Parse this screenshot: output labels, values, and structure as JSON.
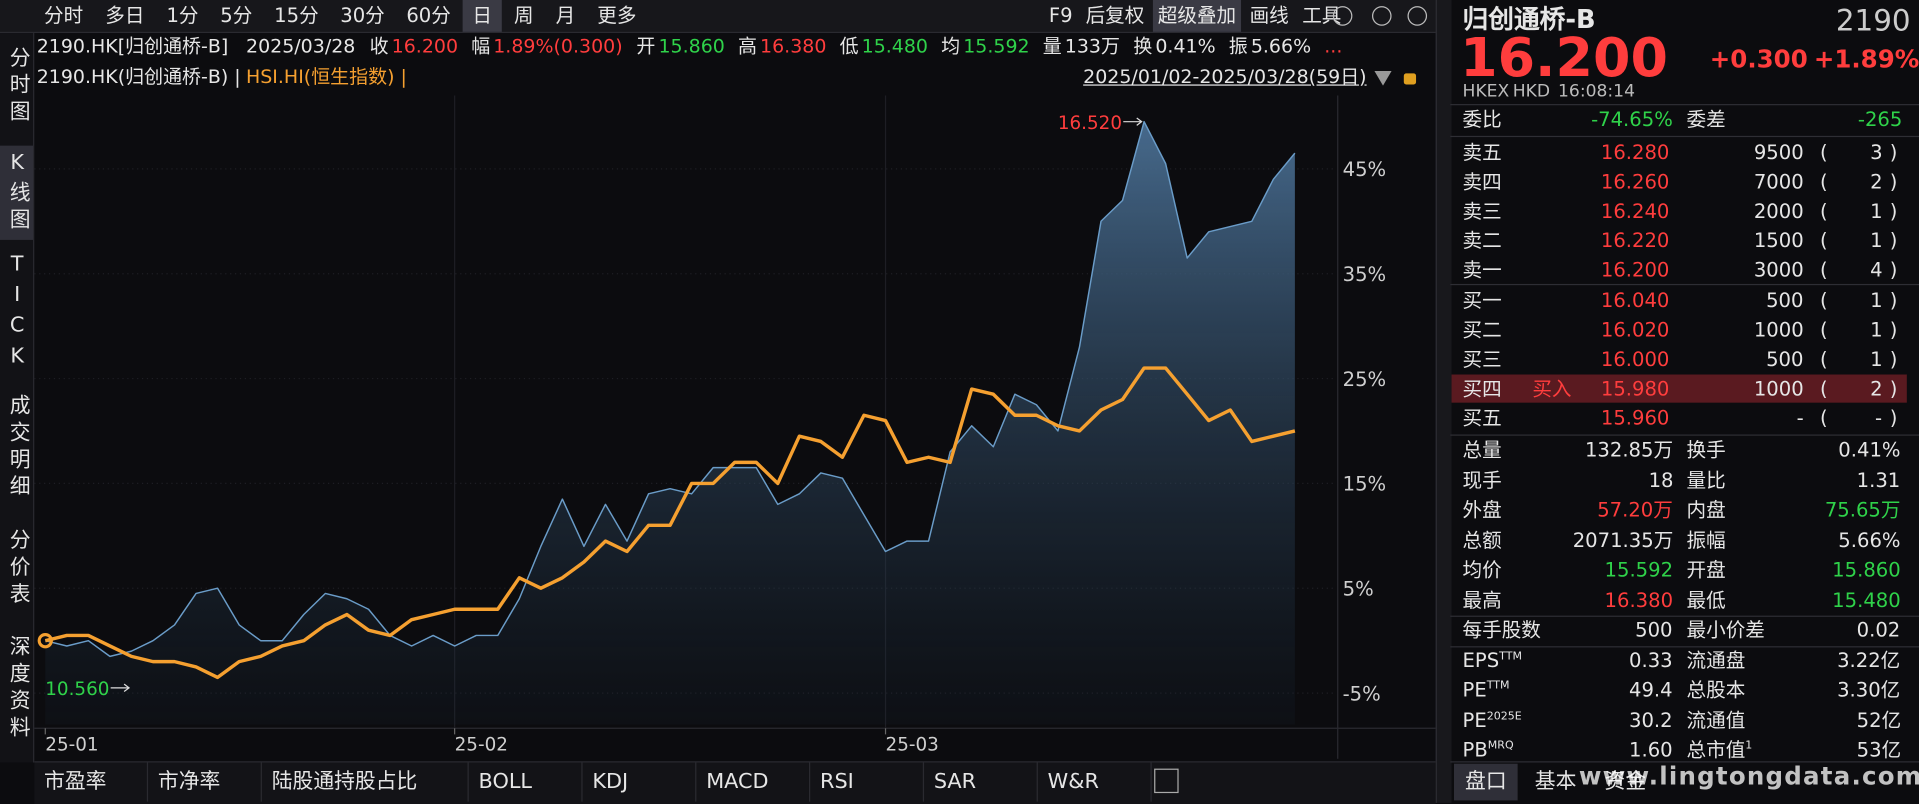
{
  "toolbar": {
    "periods": [
      "分时",
      "多日",
      "1分",
      "5分",
      "15分",
      "30分",
      "60分",
      "日",
      "周",
      "月",
      "更多"
    ],
    "active_period": 7,
    "tools": [
      "F9",
      "后复权",
      "超级叠加",
      "画线",
      "工具"
    ],
    "active_tool": 2
  },
  "left_tabs": [
    "分时图",
    "K线图",
    "TICK",
    "成交明细",
    "分价表",
    "深度资料"
  ],
  "active_tab": 1,
  "info": {
    "symbol": "2190.HK[归创通桥-B]",
    "date": "2025/03/28",
    "items": [
      {
        "label": "收",
        "value": "16.200",
        "tone": "up"
      },
      {
        "label": "幅",
        "value": "1.89%(0.300)",
        "tone": "up"
      },
      {
        "label": "开",
        "value": "15.860",
        "tone": "down"
      },
      {
        "label": "高",
        "value": "16.380",
        "tone": "up"
      },
      {
        "label": "低",
        "value": "15.480",
        "tone": "down"
      },
      {
        "label": "均",
        "value": "15.592",
        "tone": "down"
      },
      {
        "label": "量",
        "value": "133万",
        "tone": "flat"
      },
      {
        "label": "换",
        "value": "0.41%",
        "tone": "flat"
      },
      {
        "label": "振",
        "value": "5.66%",
        "tone": "flat"
      }
    ],
    "more": "..."
  },
  "legend_line": {
    "main": "2190.HK(归创通桥-B) |",
    "overlay": "HSI.HI(恒生指数) |",
    "range": "2025/01/02-2025/03/28(59日)"
  },
  "chart_data": {
    "type": "line",
    "categories": [
      "25-01",
      null,
      null,
      null,
      null,
      null,
      null,
      null,
      null,
      null,
      null,
      null,
      null,
      null,
      null,
      null,
      null,
      null,
      null,
      "25-02",
      null,
      null,
      null,
      null,
      null,
      null,
      null,
      null,
      null,
      null,
      null,
      null,
      null,
      null,
      null,
      null,
      null,
      null,
      null,
      "25-03",
      null,
      null,
      null,
      null,
      null,
      null,
      null,
      null,
      null,
      null,
      null,
      null,
      null,
      null,
      null,
      null,
      null,
      null,
      null
    ],
    "series": [
      {
        "name": "2190.HK(归创通桥-B)",
        "color": "#6a9cc8",
        "area": true,
        "values": [
          0,
          -0.5,
          0,
          -1.5,
          -1,
          0,
          1.5,
          4.5,
          5,
          1.5,
          0,
          0,
          2.5,
          4.5,
          4,
          3,
          0.5,
          -0.5,
          0.5,
          -0.5,
          0.5,
          0.5,
          4,
          9,
          13.5,
          9,
          13,
          9.5,
          14,
          14.5,
          14,
          16.5,
          16.5,
          16.5,
          13,
          14,
          16,
          15.5,
          12,
          8.5,
          9.5,
          9.5,
          18,
          20.5,
          18.5,
          23.5,
          22.5,
          20,
          28,
          40,
          42,
          49.5,
          45.5,
          36.5,
          39,
          39.5,
          40,
          44,
          46.5
        ]
      },
      {
        "name": "HSI.HI(恒生指数)",
        "color": "#f5a030",
        "area": false,
        "values": [
          0,
          0.5,
          0.5,
          -0.5,
          -1.5,
          -2,
          -2,
          -2.5,
          -3.5,
          -2,
          -1.5,
          -0.5,
          0,
          1.5,
          2.5,
          1,
          0.5,
          2,
          2.5,
          3,
          3,
          3,
          6,
          5,
          6,
          7.5,
          9.5,
          8.5,
          11,
          11,
          15,
          15,
          17,
          17,
          15,
          19.5,
          19,
          17.5,
          21.5,
          21,
          17,
          17.5,
          17,
          24,
          23.5,
          21.5,
          21.5,
          20.5,
          20,
          22,
          23,
          26,
          26,
          23.5,
          21,
          22,
          19,
          19.5,
          20
        ]
      }
    ],
    "ylim": [
      -8,
      52
    ],
    "yticks": [
      {
        "value": -5,
        "label": "-5%"
      },
      {
        "value": 5,
        "label": "5%"
      },
      {
        "value": 15,
        "label": "15%"
      },
      {
        "value": 25,
        "label": "25%"
      },
      {
        "value": 35,
        "label": "35%"
      },
      {
        "value": 45,
        "label": "45%"
      }
    ],
    "grid": true,
    "annotations": [
      {
        "label": "16.520",
        "index": 51,
        "tone": "up"
      },
      {
        "label": "10.560",
        "index": 4,
        "tone": "down"
      }
    ]
  },
  "bottom_tabs": [
    "市盈率",
    "市净率",
    "陆股通持股占比",
    "BOLL",
    "KDJ",
    "MACD",
    "RSI",
    "SAR",
    "W&R"
  ],
  "quote": {
    "name": "归创通桥-B",
    "code": "2190",
    "price": "16.200",
    "change": "+0.300",
    "pct": "+1.89%",
    "exchange": "HKEX",
    "currency": "HKD",
    "time": "16:08:14",
    "ratio_label": "委比",
    "ratio": "-74.65%",
    "diff_label": "委差",
    "diff": "-265",
    "brackets": [
      "(",
      ")"
    ],
    "asks": [
      [
        "卖五",
        "16.280",
        "9500",
        "3"
      ],
      [
        "卖四",
        "16.260",
        "7000",
        "2"
      ],
      [
        "卖三",
        "16.240",
        "2000",
        "1"
      ],
      [
        "卖二",
        "16.220",
        "1500",
        "1"
      ],
      [
        "卖一",
        "16.200",
        "3000",
        "4"
      ]
    ],
    "bids": [
      [
        "买一",
        "16.040",
        "500",
        "1"
      ],
      [
        "买二",
        "16.020",
        "1000",
        "1"
      ],
      [
        "买三",
        "16.000",
        "500",
        "1"
      ],
      [
        "买四",
        "15.980",
        "1000",
        "2"
      ],
      [
        "买五",
        "15.960",
        "-",
        "-"
      ]
    ],
    "bid_flag": {
      "row": 3,
      "label": "买入"
    },
    "stats": [
      [
        {
          "t": "总量"
        },
        {
          "t": "132.85万"
        },
        {
          "t": "换手"
        },
        {
          "t": "0.41%"
        }
      ],
      [
        {
          "t": "现手"
        },
        {
          "t": "18"
        },
        {
          "t": "量比"
        },
        {
          "t": "1.31"
        }
      ],
      [
        {
          "t": "外盘"
        },
        {
          "t": "57.20万",
          "tone": "up"
        },
        {
          "t": "内盘"
        },
        {
          "t": "75.65万",
          "tone": "down"
        }
      ],
      [
        {
          "t": "总额"
        },
        {
          "t": "2071.35万"
        },
        {
          "t": "振幅"
        },
        {
          "t": "5.66%"
        }
      ],
      [
        {
          "t": "均价"
        },
        {
          "t": "15.592",
          "tone": "down"
        },
        {
          "t": "开盘"
        },
        {
          "t": "15.860",
          "tone": "down"
        }
      ],
      [
        {
          "t": "最高"
        },
        {
          "t": "16.380",
          "tone": "up"
        },
        {
          "t": "最低"
        },
        {
          "t": "15.480",
          "tone": "down"
        }
      ],
      [
        {
          "t": "每手股数"
        },
        {
          "t": "500"
        },
        {
          "t": "最小价差"
        },
        {
          "t": "0.02"
        }
      ],
      [
        {
          "t": "EPS",
          "sup": "TTM"
        },
        {
          "t": "0.33"
        },
        {
          "t": "流通盘"
        },
        {
          "t": "3.22亿"
        }
      ],
      [
        {
          "t": "PE",
          "sup": "TTM"
        },
        {
          "t": "49.4"
        },
        {
          "t": "总股本"
        },
        {
          "t": "3.30亿"
        }
      ],
      [
        {
          "t": "PE",
          "sup": "2025E"
        },
        {
          "t": "30.2"
        },
        {
          "t": "流通值"
        },
        {
          "t": "52亿"
        }
      ],
      [
        {
          "t": "PB",
          "sup": "MRQ"
        },
        {
          "t": "1.60"
        },
        {
          "t": "总市值",
          "sup": "1"
        },
        {
          "t": "53亿"
        }
      ]
    ],
    "tabs": [
      "盘口",
      "基本",
      "资金"
    ]
  },
  "watermark": "www.lingtongdata.com"
}
